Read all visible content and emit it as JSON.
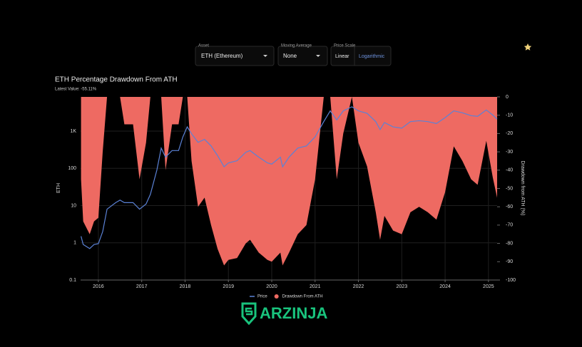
{
  "ui": {
    "asset_label": "Asset",
    "asset_value": "ETH (Ethereum)",
    "ma_label": "Moving Average",
    "ma_value": "None",
    "scale_label": "Price Scale",
    "scale_options": [
      "Linear",
      "Logarithmic"
    ]
  },
  "chart_data": {
    "type": "line-area",
    "title": "ETH Percentage Drawdown From ATH",
    "subtitle": "Latest Value: -55.11%",
    "y_label": "ETH",
    "y2_label": "Drawdown from ATH (%)",
    "log_y": true,
    "x": [
      2015.6,
      2015.65,
      2015.8,
      2015.9,
      2016.0,
      2016.1,
      2016.2,
      2016.4,
      2016.5,
      2016.6,
      2016.8,
      2016.95,
      2017.1,
      2017.2,
      2017.35,
      2017.45,
      2017.55,
      2017.7,
      2017.85,
      2017.95,
      2018.05,
      2018.15,
      2018.3,
      2018.45,
      2018.6,
      2018.75,
      2018.9,
      2019.0,
      2019.2,
      2019.4,
      2019.5,
      2019.7,
      2019.9,
      2020.0,
      2020.2,
      2020.25,
      2020.4,
      2020.6,
      2020.8,
      2021.0,
      2021.2,
      2021.35,
      2021.5,
      2021.65,
      2021.85,
      2022.0,
      2022.2,
      2022.4,
      2022.5,
      2022.6,
      2022.8,
      2023.0,
      2023.2,
      2023.4,
      2023.6,
      2023.8,
      2024.0,
      2024.2,
      2024.4,
      2024.6,
      2024.75,
      2024.95,
      2025.1,
      2025.2
    ],
    "series": [
      {
        "name": "Drawdown From ATH",
        "color": "#ee6a62",
        "axis": "y2",
        "values": [
          -45,
          -68,
          -75,
          -68,
          -66,
          -30,
          0,
          0,
          0,
          -15,
          -15,
          -45,
          -25,
          0,
          0,
          0,
          -40,
          -15,
          -15,
          0,
          0,
          -35,
          -60,
          -55,
          -70,
          -83,
          -92,
          -89,
          -88,
          -80,
          -78,
          -85,
          -89,
          -90,
          -85,
          -92,
          -85,
          -75,
          -70,
          -45,
          0,
          0,
          -45,
          -20,
          0,
          -25,
          -38,
          -63,
          -78,
          -65,
          -73,
          -75,
          -63,
          -60,
          -63,
          -67,
          -52,
          -27,
          -35,
          -45,
          -48,
          -24,
          -44,
          -55.11
        ]
      },
      {
        "name": "Price",
        "color": "#5b82d6",
        "axis": "y",
        "values": [
          1.5,
          0.9,
          0.7,
          0.9,
          0.95,
          2,
          8,
          12,
          14,
          12,
          12,
          8,
          11,
          20,
          90,
          350,
          200,
          300,
          300,
          700,
          1300,
          850,
          500,
          600,
          400,
          220,
          110,
          140,
          160,
          270,
          300,
          200,
          140,
          130,
          200,
          110,
          200,
          350,
          400,
          700,
          1800,
          3500,
          2000,
          3500,
          4500,
          3500,
          3000,
          1800,
          1100,
          1700,
          1300,
          1200,
          1800,
          1900,
          1800,
          1600,
          2300,
          3500,
          3100,
          2600,
          2500,
          3700,
          2700,
          2100
        ]
      }
    ],
    "xlim": [
      2015.59,
      2025.2
    ],
    "xticks": [
      2016,
      2017,
      2018,
      2019,
      2020,
      2021,
      2022,
      2023,
      2024,
      2025
    ],
    "ylim": [
      0.1,
      8300
    ],
    "yticks": [
      0.1,
      1,
      10,
      100,
      {
        "value": 1000,
        "label": "1K"
      }
    ],
    "y2lim": [
      -100,
      0
    ],
    "y2ticks": [
      0,
      -10,
      -20,
      -30,
      -40,
      -50,
      -60,
      -70,
      -80,
      -90,
      -100
    ],
    "grid": true,
    "legend": "bottom"
  },
  "logo": {
    "text": "ARZINJA"
  }
}
